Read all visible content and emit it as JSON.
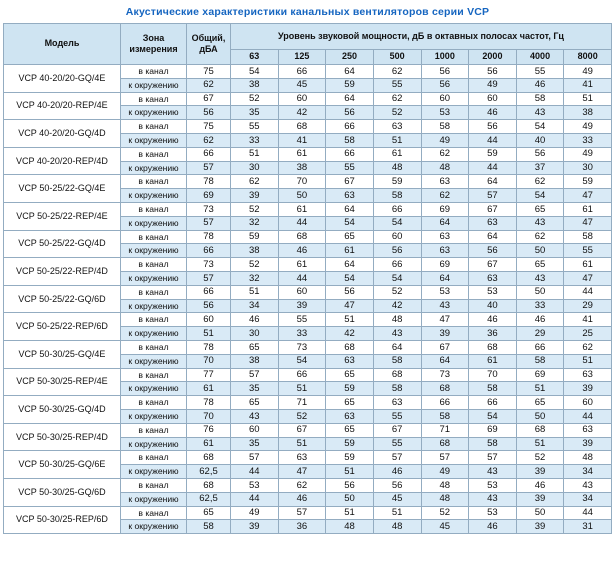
{
  "title": "Акустические характеристики канальных вентиляторов  серии VCP",
  "table": {
    "headers": {
      "model": "Модель",
      "zone": "Зона измерения",
      "total": "Общий, дБА",
      "spl_group": "Уровень звуковой мощности, дБ в октавных полосах частот, Гц",
      "frequencies": [
        "63",
        "125",
        "250",
        "500",
        "1000",
        "2000",
        "4000",
        "8000"
      ]
    },
    "zone_labels": {
      "in_duct": "в канал",
      "to_ambient": "к окружению"
    },
    "rows": [
      {
        "model": "VCP 40-20/20-GQ/4E",
        "in_duct": {
          "total": "75",
          "values": [
            "54",
            "66",
            "64",
            "62",
            "56",
            "56",
            "55",
            "49"
          ]
        },
        "to_ambient": {
          "total": "62",
          "values": [
            "38",
            "45",
            "59",
            "55",
            "56",
            "49",
            "46",
            "41"
          ]
        }
      },
      {
        "model": "VCP 40-20/20-REP/4E",
        "in_duct": {
          "total": "67",
          "values": [
            "52",
            "60",
            "64",
            "62",
            "60",
            "60",
            "58",
            "51"
          ]
        },
        "to_ambient": {
          "total": "56",
          "values": [
            "35",
            "42",
            "56",
            "52",
            "53",
            "46",
            "43",
            "38"
          ]
        }
      },
      {
        "model": "VCP 40-20/20-GQ/4D",
        "in_duct": {
          "total": "75",
          "values": [
            "55",
            "68",
            "66",
            "63",
            "58",
            "56",
            "54",
            "49"
          ]
        },
        "to_ambient": {
          "total": "62",
          "values": [
            "33",
            "41",
            "58",
            "51",
            "49",
            "44",
            "40",
            "33"
          ]
        }
      },
      {
        "model": "VCP 40-20/20-REP/4D",
        "in_duct": {
          "total": "66",
          "values": [
            "51",
            "61",
            "66",
            "61",
            "62",
            "59",
            "56",
            "49"
          ]
        },
        "to_ambient": {
          "total": "57",
          "values": [
            "30",
            "38",
            "55",
            "48",
            "48",
            "44",
            "37",
            "30"
          ]
        }
      },
      {
        "model": "VCP 50-25/22-GQ/4E",
        "in_duct": {
          "total": "78",
          "values": [
            "62",
            "70",
            "67",
            "59",
            "63",
            "64",
            "62",
            "59"
          ]
        },
        "to_ambient": {
          "total": "69",
          "values": [
            "39",
            "50",
            "63",
            "58",
            "62",
            "57",
            "54",
            "47"
          ]
        }
      },
      {
        "model": "VCP 50-25/22-REP/4E",
        "in_duct": {
          "total": "73",
          "values": [
            "52",
            "61",
            "64",
            "66",
            "69",
            "67",
            "65",
            "61"
          ]
        },
        "to_ambient": {
          "total": "57",
          "values": [
            "32",
            "44",
            "54",
            "54",
            "64",
            "63",
            "43",
            "47"
          ]
        }
      },
      {
        "model": "VCP 50-25/22-GQ/4D",
        "in_duct": {
          "total": "78",
          "values": [
            "59",
            "68",
            "65",
            "60",
            "63",
            "64",
            "62",
            "58"
          ]
        },
        "to_ambient": {
          "total": "66",
          "values": [
            "38",
            "46",
            "61",
            "56",
            "63",
            "56",
            "50",
            "55"
          ]
        }
      },
      {
        "model": "VCP 50-25/22-REP/4D",
        "in_duct": {
          "total": "73",
          "values": [
            "52",
            "61",
            "64",
            "66",
            "69",
            "67",
            "65",
            "61"
          ]
        },
        "to_ambient": {
          "total": "57",
          "values": [
            "32",
            "44",
            "54",
            "54",
            "64",
            "63",
            "43",
            "47"
          ]
        }
      },
      {
        "model": "VCP 50-25/22-GQ/6D",
        "in_duct": {
          "total": "66",
          "values": [
            "51",
            "60",
            "56",
            "52",
            "53",
            "53",
            "50",
            "44"
          ]
        },
        "to_ambient": {
          "total": "56",
          "values": [
            "34",
            "39",
            "47",
            "42",
            "43",
            "40",
            "33",
            "29"
          ]
        }
      },
      {
        "model": "VCP 50-25/22-REP/6D",
        "in_duct": {
          "total": "60",
          "values": [
            "46",
            "55",
            "51",
            "48",
            "47",
            "46",
            "46",
            "41"
          ]
        },
        "to_ambient": {
          "total": "51",
          "values": [
            "30",
            "33",
            "42",
            "43",
            "39",
            "36",
            "29",
            "25"
          ]
        }
      },
      {
        "model": "VCP 50-30/25-GQ/4E",
        "in_duct": {
          "total": "78",
          "values": [
            "65",
            "73",
            "68",
            "64",
            "67",
            "68",
            "66",
            "62"
          ]
        },
        "to_ambient": {
          "total": "70",
          "values": [
            "38",
            "54",
            "63",
            "58",
            "64",
            "61",
            "58",
            "51"
          ]
        }
      },
      {
        "model": "VCP 50-30/25-REP/4E",
        "in_duct": {
          "total": "77",
          "values": [
            "57",
            "66",
            "65",
            "68",
            "73",
            "70",
            "69",
            "63"
          ]
        },
        "to_ambient": {
          "total": "61",
          "values": [
            "35",
            "51",
            "59",
            "58",
            "68",
            "58",
            "51",
            "39"
          ]
        }
      },
      {
        "model": "VCP 50-30/25-GQ/4D",
        "in_duct": {
          "total": "78",
          "values": [
            "65",
            "71",
            "65",
            "63",
            "66",
            "66",
            "65",
            "60"
          ]
        },
        "to_ambient": {
          "total": "70",
          "values": [
            "43",
            "52",
            "63",
            "55",
            "58",
            "54",
            "50",
            "44"
          ]
        }
      },
      {
        "model": "VCP 50-30/25-REP/4D",
        "in_duct": {
          "total": "76",
          "values": [
            "60",
            "67",
            "65",
            "67",
            "71",
            "69",
            "68",
            "63"
          ]
        },
        "to_ambient": {
          "total": "61",
          "values": [
            "35",
            "51",
            "59",
            "55",
            "68",
            "58",
            "51",
            "39"
          ]
        }
      },
      {
        "model": "VCP 50-30/25-GQ/6E",
        "in_duct": {
          "total": "68",
          "values": [
            "57",
            "63",
            "59",
            "57",
            "57",
            "57",
            "52",
            "48"
          ]
        },
        "to_ambient": {
          "total": "62,5",
          "values": [
            "44",
            "47",
            "51",
            "46",
            "49",
            "43",
            "39",
            "34"
          ]
        }
      },
      {
        "model": "VCP 50-30/25-GQ/6D",
        "in_duct": {
          "total": "68",
          "values": [
            "53",
            "62",
            "56",
            "56",
            "48",
            "53",
            "46",
            "43"
          ]
        },
        "to_ambient": {
          "total": "62,5",
          "values": [
            "44",
            "46",
            "50",
            "45",
            "48",
            "43",
            "39",
            "34"
          ]
        }
      },
      {
        "model": "VCP 50-30/25-REP/6D",
        "in_duct": {
          "total": "65",
          "values": [
            "49",
            "57",
            "51",
            "51",
            "52",
            "53",
            "50",
            "44"
          ]
        },
        "to_ambient": {
          "total": "58",
          "values": [
            "39",
            "36",
            "48",
            "48",
            "45",
            "46",
            "39",
            "31"
          ]
        }
      }
    ]
  }
}
